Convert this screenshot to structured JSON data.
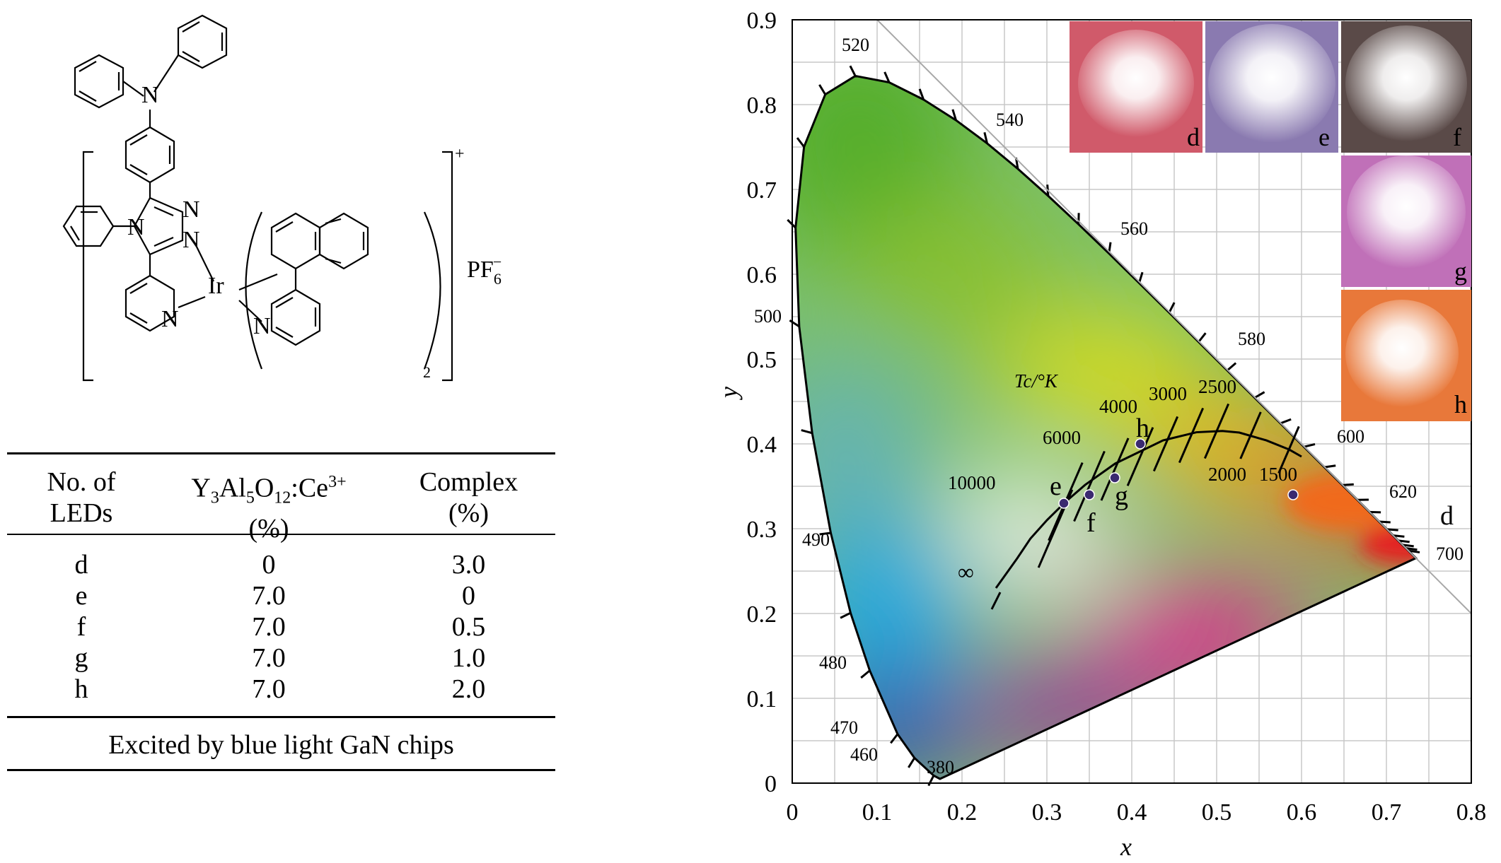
{
  "structure": {
    "charge": "+",
    "counter_ion_main": "PF",
    "counter_ion_sub": "6",
    "counter_ion_sup": "−",
    "subscript_count": "2",
    "atoms": {
      "amine_n": "N",
      "triazole_n1": "N",
      "triazole_n2": "N",
      "triazole_n3": "N",
      "pyridine_n": "N",
      "metal": "Ir",
      "ligand_n": "N"
    }
  },
  "table": {
    "headers": {
      "col1_line1": "No. of",
      "col1_line2": "LEDs",
      "col2_pre": "Y",
      "col2_sub1": "3",
      "col2_mid1": "Al",
      "col2_sub2": "5",
      "col2_mid2": "O",
      "col2_sub3": "12",
      "col2_mid3": ":Ce",
      "col2_sup": "3+",
      "col2_line2": "(%)",
      "col3_line1": "Complex",
      "col3_line2": "(%)"
    },
    "rows": [
      {
        "led": "d",
        "yag": "0",
        "complex": "3.0"
      },
      {
        "led": "e",
        "yag": "7.0",
        "complex": "0"
      },
      {
        "led": "f",
        "yag": "7.0",
        "complex": "0.5"
      },
      {
        "led": "g",
        "yag": "7.0",
        "complex": "1.0"
      },
      {
        "led": "h",
        "yag": "7.0",
        "complex": "2.0"
      }
    ],
    "footer": "Excited by blue light GaN chips"
  },
  "chart_data": {
    "type": "scatter",
    "title": "",
    "xlabel": "x",
    "ylabel": "y",
    "xlim": [
      0,
      0.8
    ],
    "ylim": [
      0,
      0.9
    ],
    "grid": true,
    "x_ticks": [
      "0",
      "0.1",
      "0.2",
      "0.3",
      "0.4",
      "0.5",
      "0.6",
      "0.7",
      "0.8"
    ],
    "y_ticks": [
      "0",
      "0.1",
      "0.2",
      "0.3",
      "0.4",
      "0.5",
      "0.6",
      "0.7",
      "0.8",
      "0.9"
    ],
    "spectral_locus": [
      [
        0.1741,
        0.005
      ],
      [
        0.1666,
        0.0089
      ],
      [
        0.144,
        0.0297
      ],
      [
        0.1241,
        0.0578
      ],
      [
        0.0913,
        0.1327
      ],
      [
        0.0687,
        0.2007
      ],
      [
        0.0454,
        0.295
      ],
      [
        0.0235,
        0.4127
      ],
      [
        0.0082,
        0.5384
      ],
      [
        0.0039,
        0.6548
      ],
      [
        0.0139,
        0.7502
      ],
      [
        0.0389,
        0.812
      ],
      [
        0.0743,
        0.8338
      ],
      [
        0.1142,
        0.8262
      ],
      [
        0.1547,
        0.8059
      ],
      [
        0.1929,
        0.7816
      ],
      [
        0.2296,
        0.7543
      ],
      [
        0.2658,
        0.7243
      ],
      [
        0.3016,
        0.6923
      ],
      [
        0.3373,
        0.6589
      ],
      [
        0.3731,
        0.6245
      ],
      [
        0.4087,
        0.5896
      ],
      [
        0.4441,
        0.5547
      ],
      [
        0.4788,
        0.5202
      ],
      [
        0.5125,
        0.4866
      ],
      [
        0.5448,
        0.4544
      ],
      [
        0.5752,
        0.4242
      ],
      [
        0.6029,
        0.3965
      ],
      [
        0.627,
        0.3725
      ],
      [
        0.6482,
        0.3514
      ],
      [
        0.6658,
        0.334
      ],
      [
        0.6801,
        0.3197
      ],
      [
        0.6915,
        0.3083
      ],
      [
        0.7006,
        0.2993
      ],
      [
        0.7079,
        0.292
      ],
      [
        0.714,
        0.2859
      ],
      [
        0.719,
        0.2809
      ],
      [
        0.723,
        0.277
      ],
      [
        0.726,
        0.274
      ],
      [
        0.7347,
        0.2653
      ]
    ],
    "wavelength_labels": [
      "380",
      "460",
      "470",
      "480",
      "490",
      "500",
      "520",
      "540",
      "560",
      "580",
      "600",
      "620",
      "700"
    ],
    "planckian_locus": [
      [
        0.24,
        0.23
      ],
      [
        0.265,
        0.265
      ],
      [
        0.2806,
        0.2883
      ],
      [
        0.3003,
        0.3103
      ],
      [
        0.3221,
        0.3318
      ],
      [
        0.345,
        0.3516
      ],
      [
        0.3805,
        0.3768
      ],
      [
        0.4369,
        0.4041
      ],
      [
        0.4762,
        0.4137
      ],
      [
        0.5068,
        0.4152
      ],
      [
        0.5267,
        0.4133
      ],
      [
        0.5586,
        0.4041
      ],
      [
        0.5853,
        0.3934
      ],
      [
        0.6,
        0.385
      ]
    ],
    "tc_title": "Tc/°K",
    "cct_labels": [
      "10000",
      "6000",
      "4000",
      "3000",
      "2500",
      "2000",
      "1500"
    ],
    "infinity_label": "∞",
    "series": [
      {
        "name": "d",
        "x": 0.59,
        "y": 0.34
      },
      {
        "name": "e",
        "x": 0.32,
        "y": 0.33
      },
      {
        "name": "f",
        "x": 0.35,
        "y": 0.34
      },
      {
        "name": "g",
        "x": 0.38,
        "y": 0.36
      },
      {
        "name": "h",
        "x": 0.41,
        "y": 0.4
      }
    ],
    "photo_labels": [
      "d",
      "e",
      "f",
      "g",
      "h"
    ],
    "colors": {
      "point": "#3a2a70",
      "photo_d": "#d05a6a",
      "photo_e": "#8a7ab0",
      "photo_f": "#5a4a48",
      "photo_g": "#c070b8",
      "photo_h": "#e8783a"
    }
  }
}
